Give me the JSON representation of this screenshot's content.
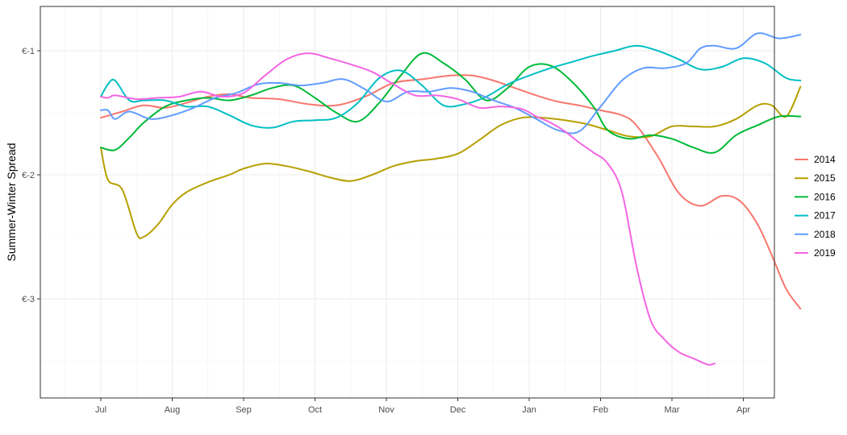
{
  "chart_data": {
    "type": "line",
    "title": "",
    "xlabel": "",
    "ylabel": "Summer-Winter Spread",
    "x_tick_labels": [
      "Jul",
      "Aug",
      "Sep",
      "Oct",
      "Nov",
      "Dec",
      "Jan",
      "Feb",
      "Mar",
      "Apr"
    ],
    "y_ticks": [
      {
        "value": -1,
        "label": "€-1"
      },
      {
        "value": -2,
        "label": "€-2"
      },
      {
        "value": -3,
        "label": "€-3"
      }
    ],
    "ylim": [
      -3.72,
      -0.63
    ],
    "xlim": [
      0,
      10
    ],
    "grid": true,
    "legend_position": "right",
    "series": [
      {
        "name": "2014",
        "color": "#F8766D",
        "x": [
          0.0,
          0.3,
          0.6,
          0.9,
          1.2,
          1.5,
          1.8,
          2.1,
          2.5,
          2.9,
          3.3,
          3.7,
          4.1,
          4.5,
          4.9,
          5.2,
          5.5,
          5.8,
          6.1,
          6.4,
          6.7,
          7.0,
          7.3,
          7.5,
          7.8,
          8.1,
          8.4,
          8.7,
          8.95,
          9.2,
          9.4,
          9.6,
          9.8
        ],
        "y": [
          -1.54,
          -1.49,
          -1.44,
          -1.46,
          -1.42,
          -1.37,
          -1.35,
          -1.38,
          -1.39,
          -1.43,
          -1.44,
          -1.37,
          -1.26,
          -1.23,
          -1.2,
          -1.2,
          -1.24,
          -1.3,
          -1.36,
          -1.41,
          -1.44,
          -1.48,
          -1.52,
          -1.6,
          -1.85,
          -2.15,
          -2.25,
          -2.17,
          -2.21,
          -2.4,
          -2.65,
          -2.92,
          -3.08
        ]
      },
      {
        "name": "2015",
        "color": "#B79F00",
        "x": [
          0.0,
          0.1,
          0.3,
          0.5,
          0.6,
          0.8,
          1.0,
          1.2,
          1.5,
          1.8,
          2.0,
          2.3,
          2.6,
          2.9,
          3.2,
          3.5,
          3.8,
          4.1,
          4.4,
          4.7,
          5.0,
          5.3,
          5.6,
          5.9,
          6.2,
          6.5,
          6.8,
          7.1,
          7.4,
          7.7,
          8.0,
          8.3,
          8.6,
          8.9,
          9.2,
          9.4,
          9.6,
          9.8
        ],
        "y": [
          -1.78,
          -2.04,
          -2.12,
          -2.47,
          -2.5,
          -2.4,
          -2.24,
          -2.14,
          -2.06,
          -2.0,
          -1.95,
          -1.91,
          -1.93,
          -1.97,
          -2.02,
          -2.05,
          -2.0,
          -1.93,
          -1.89,
          -1.87,
          -1.83,
          -1.72,
          -1.6,
          -1.54,
          -1.54,
          -1.56,
          -1.59,
          -1.64,
          -1.69,
          -1.69,
          -1.61,
          -1.61,
          -1.61,
          -1.55,
          -1.44,
          -1.44,
          -1.53,
          -1.29
        ]
      },
      {
        "name": "2016",
        "color": "#00BA38",
        "x": [
          0.0,
          0.2,
          0.4,
          0.6,
          0.9,
          1.2,
          1.5,
          1.8,
          2.1,
          2.4,
          2.7,
          3.0,
          3.3,
          3.6,
          3.9,
          4.2,
          4.5,
          4.8,
          5.1,
          5.4,
          5.7,
          6.0,
          6.3,
          6.6,
          6.9,
          7.1,
          7.4,
          7.7,
          8.0,
          8.3,
          8.6,
          8.9,
          9.2,
          9.5,
          9.8
        ],
        "y": [
          -1.78,
          -1.8,
          -1.7,
          -1.58,
          -1.45,
          -1.4,
          -1.38,
          -1.4,
          -1.36,
          -1.3,
          -1.28,
          -1.38,
          -1.5,
          -1.57,
          -1.42,
          -1.2,
          -1.02,
          -1.1,
          -1.23,
          -1.4,
          -1.3,
          -1.13,
          -1.12,
          -1.25,
          -1.45,
          -1.64,
          -1.71,
          -1.68,
          -1.71,
          -1.78,
          -1.82,
          -1.68,
          -1.6,
          -1.53,
          -1.53
        ]
      },
      {
        "name": "2017",
        "color": "#00BFC4",
        "x": [
          0.0,
          0.1,
          0.2,
          0.4,
          0.6,
          0.9,
          1.2,
          1.5,
          1.8,
          2.1,
          2.4,
          2.7,
          3.0,
          3.3,
          3.6,
          3.9,
          4.2,
          4.5,
          4.8,
          5.1,
          5.4,
          5.7,
          6.0,
          6.3,
          6.6,
          6.9,
          7.2,
          7.5,
          7.8,
          8.1,
          8.4,
          8.7,
          9.0,
          9.3,
          9.6,
          9.8
        ],
        "y": [
          -1.37,
          -1.27,
          -1.24,
          -1.4,
          -1.4,
          -1.4,
          -1.45,
          -1.45,
          -1.52,
          -1.6,
          -1.62,
          -1.57,
          -1.56,
          -1.54,
          -1.42,
          -1.22,
          -1.16,
          -1.28,
          -1.44,
          -1.43,
          -1.37,
          -1.27,
          -1.2,
          -1.14,
          -1.09,
          -1.04,
          -1.0,
          -0.96,
          -1.0,
          -1.07,
          -1.15,
          -1.13,
          -1.06,
          -1.1,
          -1.22,
          -1.24
        ]
      },
      {
        "name": "2018",
        "color": "#619CFF",
        "x": [
          0.0,
          0.1,
          0.2,
          0.4,
          0.7,
          1.0,
          1.3,
          1.6,
          1.9,
          2.2,
          2.5,
          2.8,
          3.1,
          3.4,
          3.7,
          4.0,
          4.3,
          4.6,
          4.9,
          5.2,
          5.5,
          5.8,
          6.1,
          6.4,
          6.7,
          7.0,
          7.3,
          7.6,
          7.9,
          8.2,
          8.4,
          8.6,
          8.9,
          9.2,
          9.5,
          9.8
        ],
        "y": [
          -1.48,
          -1.48,
          -1.55,
          -1.49,
          -1.55,
          -1.52,
          -1.46,
          -1.38,
          -1.34,
          -1.27,
          -1.26,
          -1.28,
          -1.26,
          -1.23,
          -1.31,
          -1.41,
          -1.33,
          -1.33,
          -1.3,
          -1.33,
          -1.4,
          -1.46,
          -1.55,
          -1.64,
          -1.65,
          -1.45,
          -1.24,
          -1.14,
          -1.14,
          -1.1,
          -0.98,
          -0.96,
          -0.98,
          -0.86,
          -0.9,
          -0.87
        ]
      },
      {
        "name": "2019",
        "color": "#F564E3",
        "x": [
          0.0,
          0.1,
          0.2,
          0.5,
          0.8,
          1.1,
          1.4,
          1.7,
          2.0,
          2.3,
          2.6,
          2.9,
          3.2,
          3.5,
          3.8,
          4.1,
          4.4,
          4.7,
          5.0,
          5.3,
          5.6,
          5.9,
          6.1,
          6.3,
          6.5,
          6.7,
          6.9,
          7.1,
          7.3,
          7.5,
          7.7,
          7.9,
          8.1,
          8.3,
          8.5,
          8.6
        ],
        "y": [
          -1.37,
          -1.38,
          -1.36,
          -1.39,
          -1.38,
          -1.37,
          -1.33,
          -1.37,
          -1.34,
          -1.2,
          -1.07,
          -1.02,
          -1.06,
          -1.11,
          -1.17,
          -1.27,
          -1.36,
          -1.36,
          -1.39,
          -1.46,
          -1.45,
          -1.47,
          -1.53,
          -1.58,
          -1.65,
          -1.74,
          -1.82,
          -1.91,
          -2.14,
          -2.73,
          -3.17,
          -3.33,
          -3.43,
          -3.48,
          -3.53,
          -3.52
        ]
      }
    ]
  }
}
